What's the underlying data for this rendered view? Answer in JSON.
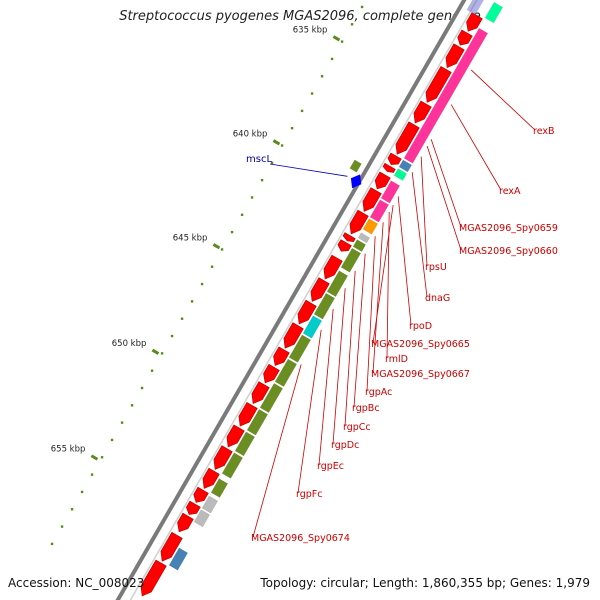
{
  "title": "Streptococcus pyogenes MGAS2096, complete genome",
  "footer": {
    "accession": "Accession: NC_008023",
    "summary": "Topology: circular; Length: 1,860,355 bp; Genes: 1,979"
  },
  "colors": {
    "backbone": "#7a7a7a",
    "forward_gene": "#ff0000",
    "reverse_gene": "#0000ff",
    "gene_label": "#cc0000",
    "special_label": "#0000aa",
    "tick": "#5a8a1e",
    "cog": [
      "#ff3399",
      "#ff9900",
      "#6b8e23",
      "#00cccc",
      "#4682b4",
      "#bbbbbb",
      "#00ff99"
    ]
  },
  "scale_labels": [
    "635 kbp",
    "640 kbp",
    "645 kbp",
    "650 kbp",
    "655 kbp"
  ],
  "gene_labels": [
    {
      "name": "rexB"
    },
    {
      "name": "rexA"
    },
    {
      "name": "MGAS2096_Spy0659"
    },
    {
      "name": "MGAS2096_Spy0660"
    },
    {
      "name": "rpsU"
    },
    {
      "name": "dnaG"
    },
    {
      "name": "rpoD"
    },
    {
      "name": "MGAS2096_Spy0665"
    },
    {
      "name": "rmlD"
    },
    {
      "name": "MGAS2096_Spy0667"
    },
    {
      "name": "rgpAc"
    },
    {
      "name": "rgpBc"
    },
    {
      "name": "rgpCc"
    },
    {
      "name": "rgpDc"
    },
    {
      "name": "rgpEc"
    },
    {
      "name": "rgpFc"
    },
    {
      "name": "MGAS2096_Spy0674"
    }
  ],
  "special_labels": [
    {
      "name": "mscL"
    }
  ]
}
